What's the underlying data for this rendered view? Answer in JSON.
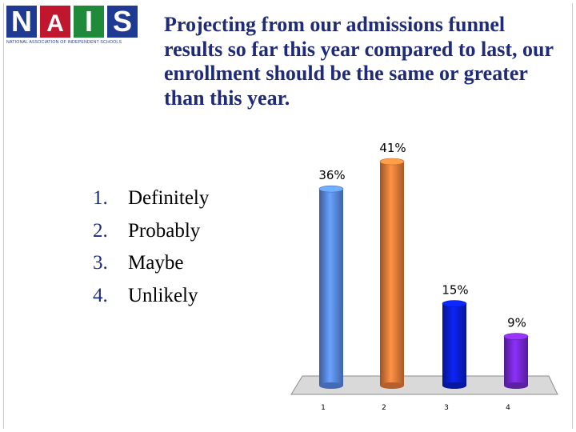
{
  "logo": {
    "letters": [
      "N",
      "A",
      "I",
      "S"
    ],
    "subtitle": "NATIONAL ASSOCIATION OF INDEPENDENT SCHOOLS"
  },
  "slide": {
    "title": "Projecting from our admissions funnel results so far this year compared to last, our enrollment should be the same or greater than this year."
  },
  "options": [
    {
      "number": "1.",
      "label": "Definitely"
    },
    {
      "number": "2.",
      "label": "Probably"
    },
    {
      "number": "3.",
      "label": "Maybe"
    },
    {
      "number": "4.",
      "label": "Unlikely"
    }
  ],
  "chart_data": {
    "type": "bar",
    "categories": [
      "1",
      "2",
      "3",
      "4"
    ],
    "values": [
      36,
      41,
      15,
      9
    ],
    "data_labels": [
      "36%",
      "41%",
      "15%",
      "9%"
    ],
    "colors": [
      "#5b8def",
      "#f07f3a",
      "#0a1fd8",
      "#7a2ad9"
    ],
    "ylim": [
      0,
      41
    ],
    "grid": false,
    "legend": "none"
  }
}
